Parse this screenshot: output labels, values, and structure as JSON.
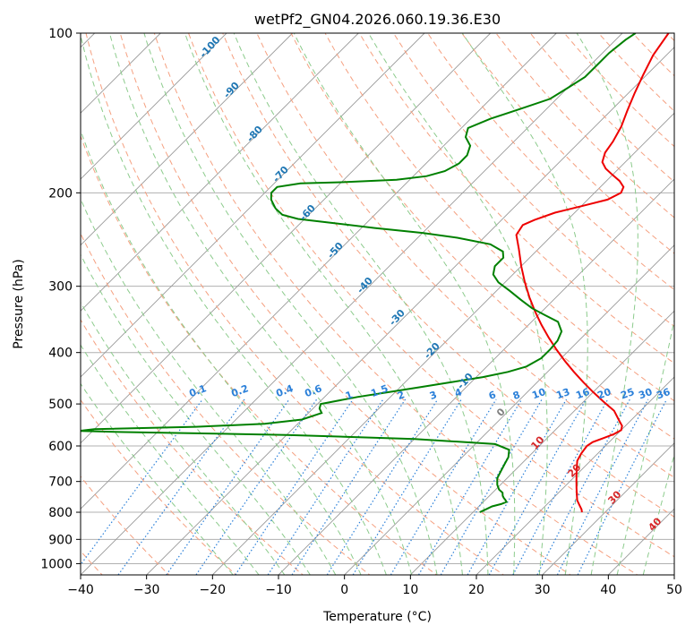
{
  "chart_data": {
    "type": "line",
    "title": "wetPf2_GN04.2026.060.19.36.E30",
    "xlabel": "Temperature (°C)",
    "ylabel": "Pressure (hPa)",
    "xlim": [
      -40,
      50
    ],
    "ylim": [
      1050,
      100
    ],
    "y_scale": "log",
    "skew": "skew-T (isotherms slanted 45°)",
    "grid": true,
    "x_ticks": [
      -40,
      -30,
      -20,
      -10,
      0,
      10,
      20,
      30,
      40,
      50
    ],
    "y_ticks": [
      1000,
      900,
      800,
      700,
      600,
      500,
      400,
      300,
      200,
      100
    ],
    "series": [
      {
        "name": "",
        "color": "#ee0000",
        "points": [
          [
            26.5,
            800
          ],
          [
            26,
            790
          ],
          [
            25,
            775
          ],
          [
            24,
            760
          ],
          [
            23,
            740
          ],
          [
            22,
            720
          ],
          [
            21,
            700
          ],
          [
            20,
            680
          ],
          [
            19,
            660
          ],
          [
            18,
            640
          ],
          [
            17.5,
            620
          ],
          [
            17.2,
            600
          ],
          [
            17.5,
            590
          ],
          [
            18.5,
            580
          ],
          [
            19.5,
            570
          ],
          [
            20,
            560
          ],
          [
            19.5,
            550
          ],
          [
            18,
            535
          ],
          [
            16,
            515
          ],
          [
            13,
            495
          ],
          [
            10,
            475
          ],
          [
            7,
            455
          ],
          [
            4,
            435
          ],
          [
            1,
            415
          ],
          [
            -2,
            395
          ],
          [
            -5,
            375
          ],
          [
            -8,
            355
          ],
          [
            -11,
            335
          ],
          [
            -14,
            315
          ],
          [
            -17,
            295
          ],
          [
            -20,
            275
          ],
          [
            -23,
            255
          ],
          [
            -25.5,
            240
          ],
          [
            -26,
            230
          ],
          [
            -25,
            225
          ],
          [
            -23,
            218
          ],
          [
            -20,
            212
          ],
          [
            -17,
            206
          ],
          [
            -16,
            200
          ],
          [
            -16.5,
            195
          ],
          [
            -18,
            190
          ],
          [
            -20,
            185
          ],
          [
            -22,
            180
          ],
          [
            -23.5,
            175
          ],
          [
            -24.5,
            168
          ],
          [
            -25,
            160
          ],
          [
            -26,
            150
          ],
          [
            -27.5,
            140
          ],
          [
            -29,
            130
          ],
          [
            -30.5,
            120
          ],
          [
            -32,
            110
          ],
          [
            -33,
            100
          ]
        ]
      },
      {
        "name": "",
        "color": "#008000",
        "points": [
          [
            11,
            800
          ],
          [
            11.5,
            790
          ],
          [
            12,
            780
          ],
          [
            13,
            772
          ],
          [
            13.5,
            765
          ],
          [
            13,
            758
          ],
          [
            12.5,
            752
          ],
          [
            12,
            745
          ],
          [
            11.5,
            735
          ],
          [
            10.5,
            725
          ],
          [
            9.5,
            710
          ],
          [
            8.5,
            690
          ],
          [
            8,
            670
          ],
          [
            7.5,
            650
          ],
          [
            7,
            630
          ],
          [
            6,
            610
          ],
          [
            3,
            595
          ],
          [
            -10,
            582
          ],
          [
            -30,
            572
          ],
          [
            -55,
            565
          ],
          [
            -62,
            562
          ],
          [
            -60,
            558
          ],
          [
            -45,
            552
          ],
          [
            -35,
            545
          ],
          [
            -30,
            535
          ],
          [
            -28,
            520
          ],
          [
            -29,
            510
          ],
          [
            -29.5,
            500
          ],
          [
            -28,
            495
          ],
          [
            -25,
            485
          ],
          [
            -21,
            475
          ],
          [
            -17,
            465
          ],
          [
            -13,
            455
          ],
          [
            -9,
            445
          ],
          [
            -6,
            435
          ],
          [
            -4,
            425
          ],
          [
            -3,
            410
          ],
          [
            -3,
            395
          ],
          [
            -3.2,
            380
          ],
          [
            -4,
            365
          ],
          [
            -6,
            350
          ],
          [
            -9,
            340
          ],
          [
            -12,
            330
          ],
          [
            -15,
            318
          ],
          [
            -18,
            306
          ],
          [
            -21,
            295
          ],
          [
            -23,
            285
          ],
          [
            -24,
            275
          ],
          [
            -24,
            265
          ],
          [
            -25,
            258
          ],
          [
            -28,
            250
          ],
          [
            -34,
            243
          ],
          [
            -40,
            238
          ],
          [
            -48,
            233
          ],
          [
            -55,
            228
          ],
          [
            -61,
            224
          ],
          [
            -64,
            220
          ],
          [
            -66,
            214
          ],
          [
            -68,
            206
          ],
          [
            -69,
            200
          ],
          [
            -69,
            195
          ],
          [
            -66,
            192
          ],
          [
            -60,
            191
          ],
          [
            -52,
            189
          ],
          [
            -48,
            186
          ],
          [
            -46,
            182
          ],
          [
            -45,
            176
          ],
          [
            -45,
            170
          ],
          [
            -46,
            163
          ],
          [
            -48,
            157
          ],
          [
            -49,
            151
          ],
          [
            -47,
            145
          ],
          [
            -44,
            139
          ],
          [
            -41,
            133
          ],
          [
            -40,
            127
          ],
          [
            -39,
            121
          ],
          [
            -39,
            115
          ],
          [
            -39,
            109
          ],
          [
            -38.5,
            103
          ],
          [
            -38,
            100
          ]
        ]
      }
    ],
    "dry_adiabat_labels": [
      "-100",
      "-90",
      "-80",
      "-70",
      "-60",
      "-50",
      "-40",
      "-30",
      "-20",
      "-10",
      "0",
      "10",
      "20",
      "30",
      "40"
    ],
    "mixing_ratio_labels": [
      "0.1",
      "0.2",
      "0.4",
      "0.6",
      "1",
      "1.5",
      "2",
      "3",
      "4",
      "6",
      "8",
      "10",
      "13",
      "16",
      "20",
      "25",
      "30",
      "36"
    ]
  },
  "colors": {
    "temperature": "#ee0000",
    "dewpoint": "#008000",
    "isotherm": "#999999",
    "dry_adiabat": "#f5a080",
    "moist_adiabat": "#8ccb8c",
    "mixing_ratio": "#2b80d9",
    "dry_label_cold": "#1f77b4",
    "dry_label_warm": "#d62728",
    "dry_label_zero": "#7f7f7f",
    "wet_bulb_line": "#d2b48c"
  }
}
